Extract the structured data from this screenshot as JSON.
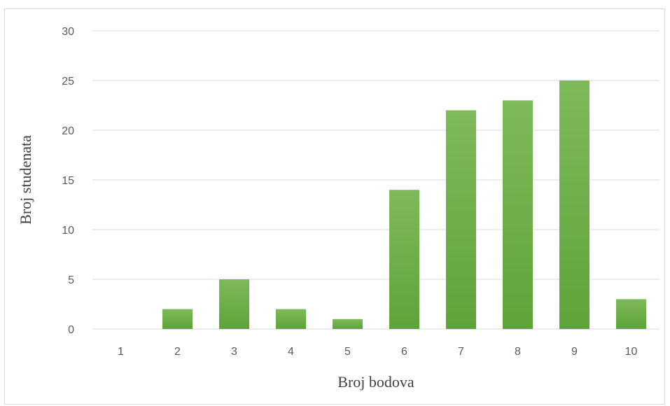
{
  "chart_data": {
    "type": "bar",
    "categories": [
      "1",
      "2",
      "3",
      "4",
      "5",
      "6",
      "7",
      "8",
      "9",
      "10"
    ],
    "values": [
      0,
      2,
      5,
      2,
      1,
      14,
      22,
      23,
      25,
      3
    ],
    "title": "",
    "xlabel": "Broj bodova",
    "ylabel": "Broj studenata",
    "ylim": [
      0,
      30
    ],
    "yticks": [
      "0",
      "5",
      "10",
      "15",
      "20",
      "25",
      "30"
    ],
    "grid": true,
    "legend": "none",
    "bar_color_top": "#7dba5a",
    "bar_color_bottom": "#5fa338"
  }
}
